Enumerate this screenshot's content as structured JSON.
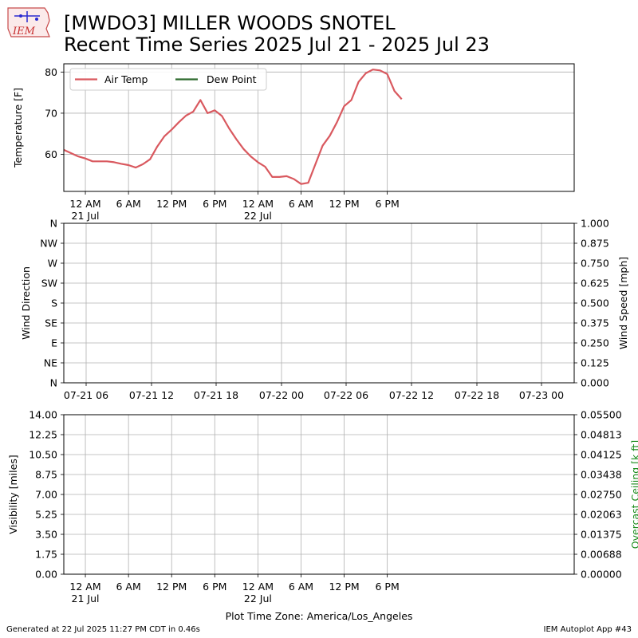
{
  "title": {
    "line1": "[MWDO3] MILLER WOODS SNOTEL",
    "line2": "Recent Time Series 2025 Jul 21 - 2025 Jul 23"
  },
  "logo_text": "IEM",
  "footer": {
    "left": "Generated at 22 Jul 2025 11:27 PM CDT in 0.46s",
    "right": "IEM Autoplot App #43",
    "timezone": "Plot Time Zone: America/Los_Angeles"
  },
  "chart_data": [
    {
      "type": "line",
      "ylabel": "Temperature [F]",
      "ylim": [
        51,
        82
      ],
      "xlim": [
        "2025-07-20 21:00",
        "2025-07-23 20:00"
      ],
      "yticks": [
        60,
        70,
        80
      ],
      "xticks": [
        {
          "t": "2025-07-21 00:00",
          "label": "12 AM",
          "sub": "21 Jul"
        },
        {
          "t": "2025-07-21 06:00",
          "label": "6 AM",
          "sub": ""
        },
        {
          "t": "2025-07-21 12:00",
          "label": "12 PM",
          "sub": ""
        },
        {
          "t": "2025-07-21 18:00",
          "label": "6 PM",
          "sub": ""
        },
        {
          "t": "2025-07-22 00:00",
          "label": "12 AM",
          "sub": "22 Jul"
        },
        {
          "t": "2025-07-22 06:00",
          "label": "6 AM",
          "sub": ""
        },
        {
          "t": "2025-07-22 12:00",
          "label": "12 PM",
          "sub": ""
        },
        {
          "t": "2025-07-22 18:00",
          "label": "6 PM",
          "sub": ""
        }
      ],
      "grid": true,
      "legend_position": "top-left",
      "series": [
        {
          "name": "Air Temp",
          "color": "#d9595f",
          "x": [
            "2025-07-20 21:00",
            "2025-07-20 22:00",
            "2025-07-20 23:00",
            "2025-07-21 00:00",
            "2025-07-21 01:00",
            "2025-07-21 02:00",
            "2025-07-21 03:00",
            "2025-07-21 04:00",
            "2025-07-21 05:00",
            "2025-07-21 06:00",
            "2025-07-21 07:00",
            "2025-07-21 08:00",
            "2025-07-21 09:00",
            "2025-07-21 10:00",
            "2025-07-21 11:00",
            "2025-07-21 12:00",
            "2025-07-21 13:00",
            "2025-07-21 14:00",
            "2025-07-21 15:00",
            "2025-07-21 16:00",
            "2025-07-21 17:00",
            "2025-07-21 18:00",
            "2025-07-21 19:00",
            "2025-07-21 20:00",
            "2025-07-21 21:00",
            "2025-07-21 22:00",
            "2025-07-21 23:00",
            "2025-07-22 00:00",
            "2025-07-22 01:00",
            "2025-07-22 02:00",
            "2025-07-22 03:00",
            "2025-07-22 04:00",
            "2025-07-22 05:00",
            "2025-07-22 06:00",
            "2025-07-22 07:00",
            "2025-07-22 08:00",
            "2025-07-22 09:00",
            "2025-07-22 10:00",
            "2025-07-22 11:00",
            "2025-07-22 12:00",
            "2025-07-22 13:00",
            "2025-07-22 14:00",
            "2025-07-22 15:00",
            "2025-07-22 16:00",
            "2025-07-22 17:00",
            "2025-07-22 18:00",
            "2025-07-22 19:00",
            "2025-07-22 20:00"
          ],
          "values": [
            61.1,
            60.3,
            59.5,
            59.0,
            58.3,
            58.3,
            58.3,
            58.1,
            57.7,
            57.4,
            56.8,
            57.6,
            58.8,
            61.9,
            64.4,
            66.0,
            67.8,
            69.4,
            70.4,
            73.2,
            70.0,
            70.7,
            69.3,
            66.3,
            63.7,
            61.3,
            59.5,
            58.1,
            57.0,
            54.5,
            54.5,
            54.7,
            54.0,
            52.8,
            53.1,
            57.6,
            62.1,
            64.5,
            67.8,
            71.7,
            73.2,
            77.6,
            79.7,
            80.6,
            80.4,
            79.5,
            75.4,
            73.4
          ]
        },
        {
          "name": "Dew Point",
          "color": "#2e6b2e",
          "x": [],
          "values": []
        }
      ]
    },
    {
      "type": "line",
      "ylabel": "Wind Direction",
      "y2label": "Wind Speed [mph]",
      "ylim": [
        0,
        360
      ],
      "y2lim": [
        0,
        1
      ],
      "yticks": [
        {
          "v": 0,
          "label": "N"
        },
        {
          "v": 45,
          "label": "NE"
        },
        {
          "v": 90,
          "label": "E"
        },
        {
          "v": 135,
          "label": "SE"
        },
        {
          "v": 180,
          "label": "S"
        },
        {
          "v": 225,
          "label": "SW"
        },
        {
          "v": 270,
          "label": "W"
        },
        {
          "v": 315,
          "label": "NW"
        },
        {
          "v": 360,
          "label": "N"
        }
      ],
      "y2ticks": [
        "0.000",
        "0.125",
        "0.250",
        "0.375",
        "0.500",
        "0.625",
        "0.750",
        "0.875",
        "1.000"
      ],
      "xticks": [
        "07-21 06",
        "07-21 12",
        "07-21 18",
        "07-22 00",
        "07-22 06",
        "07-22 12",
        "07-22 18",
        "07-23 00"
      ],
      "grid": true,
      "series": []
    },
    {
      "type": "line",
      "ylabel": "Visibility [miles]",
      "y2label": "Overcast Ceiling [k ft]",
      "ylim": [
        0,
        14
      ],
      "y2lim": [
        0,
        0.055
      ],
      "yticks": [
        "0.00",
        "1.75",
        "3.50",
        "5.25",
        "7.00",
        "8.75",
        "10.50",
        "12.25",
        "14.00"
      ],
      "y2ticks": [
        "0.00000",
        "0.00688",
        "0.01375",
        "0.02063",
        "0.02750",
        "0.03438",
        "0.04125",
        "0.04813",
        "0.05500"
      ],
      "xticks": [
        {
          "label": "12 AM",
          "sub": "21 Jul"
        },
        {
          "label": "6 AM",
          "sub": ""
        },
        {
          "label": "12 PM",
          "sub": ""
        },
        {
          "label": "6 PM",
          "sub": ""
        },
        {
          "label": "12 AM",
          "sub": "22 Jul"
        },
        {
          "label": "6 AM",
          "sub": ""
        },
        {
          "label": "12 PM",
          "sub": ""
        },
        {
          "label": "6 PM",
          "sub": ""
        }
      ],
      "grid": true,
      "series": []
    }
  ]
}
